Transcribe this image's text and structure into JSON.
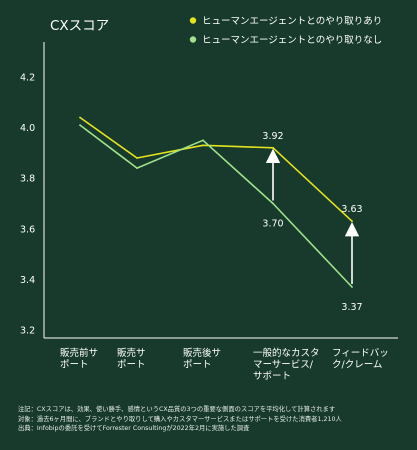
{
  "chart_data": {
    "type": "line",
    "title": "CXスコア",
    "xlabel": "",
    "ylabel": "",
    "categories": [
      [
        "販売前サ",
        "ポート"
      ],
      [
        "販売サ",
        "ポート"
      ],
      [
        "販売後サ",
        "ポート"
      ],
      [
        "一般的なカスタ",
        "マーサービス/",
        "サポート"
      ],
      [
        "フィードバッ",
        "ク/クレーム"
      ]
    ],
    "ylim": [
      3.2,
      4.2
    ],
    "yticks": [
      3.2,
      3.4,
      3.6,
      3.8,
      4.0,
      4.2
    ],
    "ytick_labels": [
      "3.2",
      "3.4",
      "3.6",
      "3.8",
      "4.0",
      "4.2"
    ],
    "grid": false,
    "legend_position": "top-right",
    "series": [
      {
        "name": "ヒューマンエージェントとのやり取りあり",
        "color": "#e4e41e",
        "values": [
          4.04,
          3.88,
          3.93,
          3.92,
          3.63
        ]
      },
      {
        "name": "ヒューマンエージェントとのやり取りなし",
        "color": "#9fe28b",
        "values": [
          4.01,
          3.84,
          3.95,
          3.7,
          3.37
        ]
      }
    ],
    "annotations": [
      {
        "text": "3.92",
        "category_index": 3,
        "series": 0,
        "position": "above"
      },
      {
        "text": "3.70",
        "category_index": 3,
        "series": 1,
        "position": "below"
      },
      {
        "text": "3.63",
        "category_index": 4,
        "series": 0,
        "position": "above"
      },
      {
        "text": "3.37",
        "category_index": 4,
        "series": 1,
        "position": "below"
      }
    ]
  },
  "notes": [
    "注記：CXスコアは、効果、使い勝手、感情というCX品質の3つの重要な側面のスコアを平均化して計算されます",
    "対象：過去6ヶ月間に、ブランドとやり取りして購入やカスタマーサービスまたはサポートを受けた消費者1,210人",
    "出典：Infobipの委託を受けてForrester Consultingが2022年2月に実施した調査"
  ],
  "colors": {
    "background": "#173a2c",
    "axis": "#ffffff",
    "text": "#ffffff"
  }
}
